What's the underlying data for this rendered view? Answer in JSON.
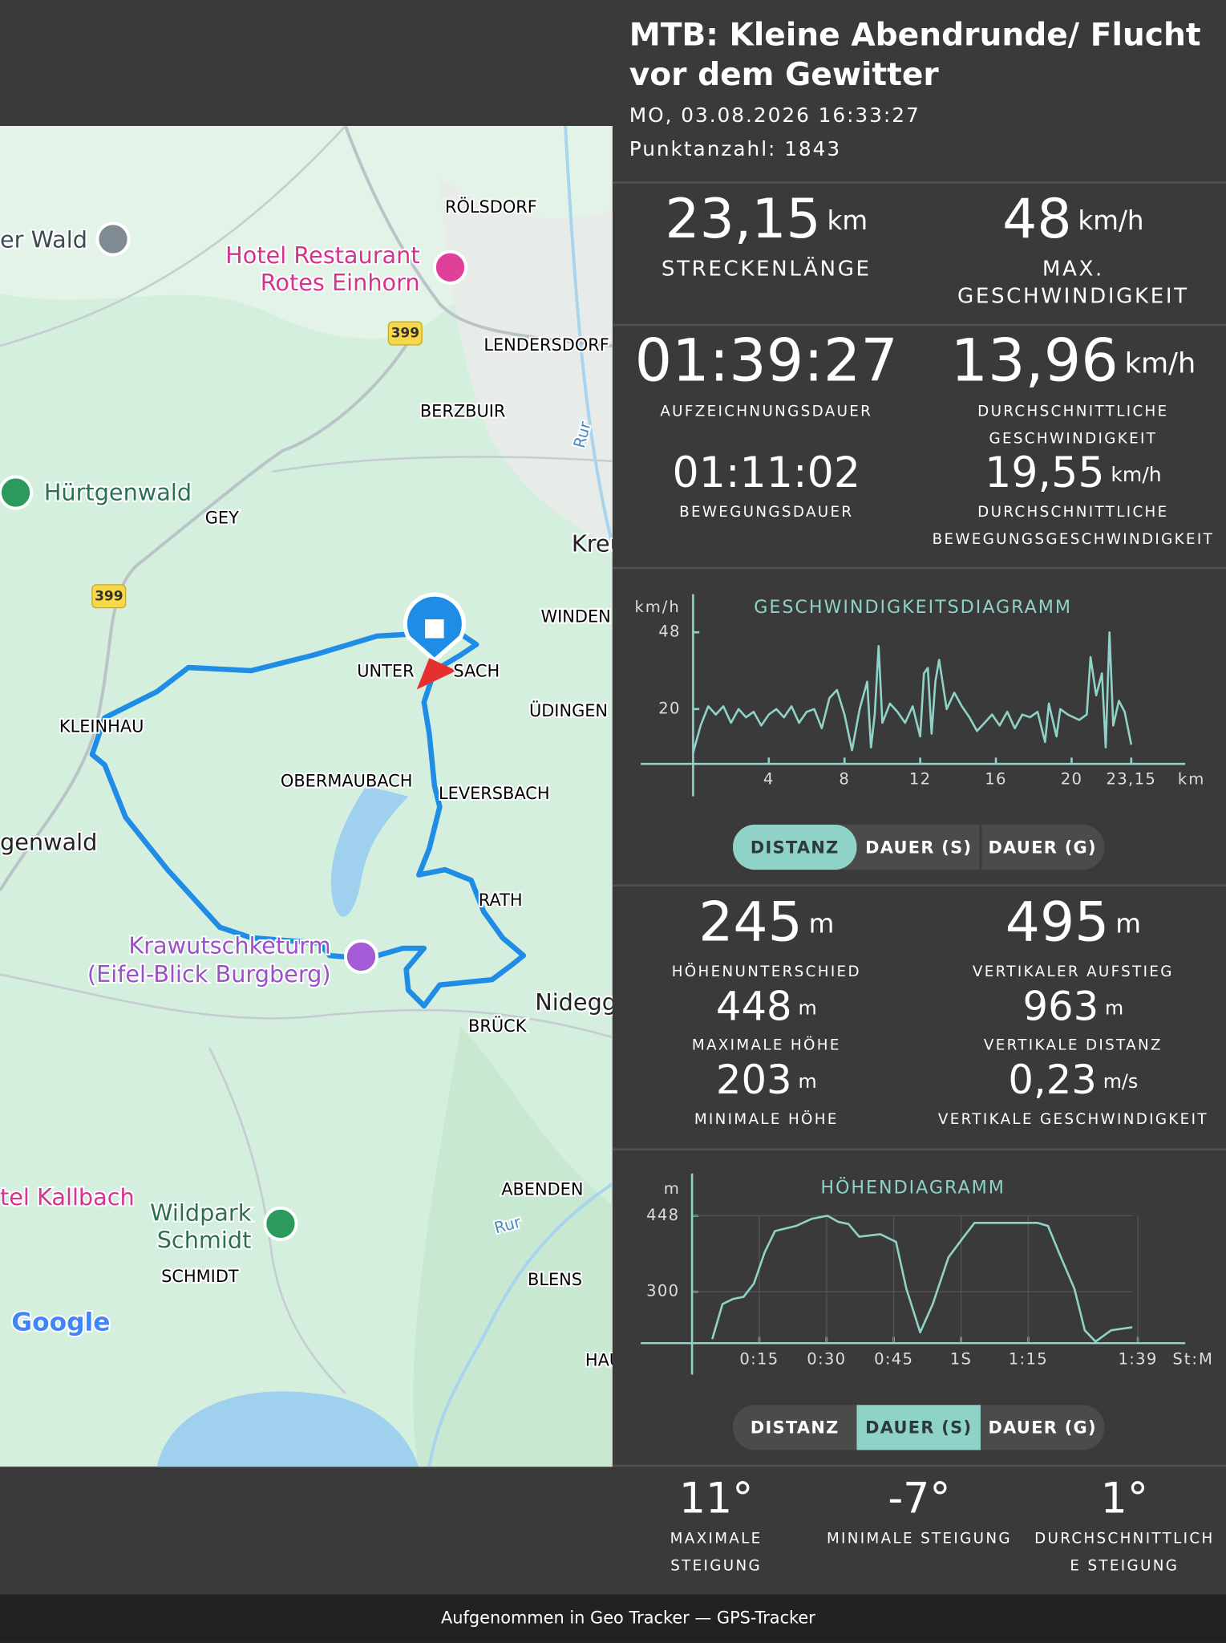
{
  "header": {
    "title_lines": [
      "MTB: Kleine Abendrunde/ Flucht",
      "vor dem Gewitter"
    ],
    "datetime": "MO, 03.08.2026 16:33:27",
    "points": "Punktanzahl: 1843"
  },
  "map": {
    "labels": [
      "er Wald",
      "Hotel Restaurant",
      "Rotes Einhorn",
      "RÖLSDORF",
      "399",
      "LENDERSDORF",
      "BERZBUIR",
      "Rur",
      "Hürtgenwald",
      "GEY",
      "Kreu",
      "399",
      "WINDEN",
      "UNTER",
      "SACH",
      "ÜDINGEN",
      "KLEINHAU",
      "OBERMAUBACH",
      "LEVERSBACH",
      "genwald",
      "RATH",
      "Krawutschketurm",
      "(Eifel-Blick Burgberg)",
      "Nidegg",
      "BRÜCK",
      "tel Kallbach",
      "ABENDEN",
      "Wildpark",
      "Schmidt",
      "Rur",
      "SCHMIDT",
      "BLENS",
      "HAU",
      "Google"
    ]
  },
  "stats": [
    {
      "value": "23,15",
      "unit": "km",
      "label": [
        "STRECKENLÄNGE"
      ]
    },
    {
      "value": "48",
      "unit": "km/h",
      "label": [
        "MAX.",
        "GESCHWINDIGKEIT"
      ]
    },
    {
      "value": "01:39:27",
      "label": [
        "AUFZEICHNUNGSDAUER"
      ]
    },
    {
      "value": "13,96",
      "unit": "km/h",
      "label": [
        "DURCHSCHNITTLICHE",
        "GESCHWINDIGKEIT"
      ]
    },
    {
      "value": "01:11:02",
      "label": [
        "BEWEGUNGSDAUER"
      ]
    },
    {
      "value": "19,55",
      "unit": "km/h",
      "label": [
        "DURCHSCHNITTLICHE",
        "BEWEGUNGSGESCHWINDIGKEIT"
      ]
    },
    {
      "value": "245",
      "unit": "m",
      "label": [
        "HÖHENUNTERSCHIED"
      ]
    },
    {
      "value": "495",
      "unit": "m",
      "label": [
        "VERTIKALER AUFSTIEG"
      ]
    },
    {
      "value": "448",
      "unit": "m",
      "label": [
        "MAXIMALE HÖHE"
      ]
    },
    {
      "value": "963",
      "unit": "m",
      "label": [
        "VERTIKALE DISTANZ"
      ]
    },
    {
      "value": "203",
      "unit": "m",
      "label": [
        "MINIMALE HÖHE"
      ]
    },
    {
      "value": "0,23",
      "unit": "m/s",
      "label": [
        "VERTIKALE GESCHWINDIGKEIT"
      ]
    },
    {
      "value": "11°",
      "label": [
        "MAXIMALE",
        "STEIGUNG"
      ]
    },
    {
      "value": "-7°",
      "label": [
        "MINIMALE STEIGUNG"
      ]
    },
    {
      "value": "1°",
      "label": [
        "DURCHSCHNITTLICH",
        "E STEIGUNG"
      ]
    }
  ],
  "speed_chart": {
    "type": "line",
    "title": "GESCHWINDIGKEITSDIAGRAMM",
    "y_unit": "km/h",
    "x_unit": "km",
    "color": "#8fd3c8",
    "x": [
      0,
      0.4,
      0.8,
      1.2,
      1.6,
      2.0,
      2.4,
      2.8,
      3.2,
      3.6,
      4.0,
      4.4,
      4.8,
      5.2,
      5.6,
      6.0,
      6.4,
      6.8,
      7.2,
      7.6,
      8.0,
      8.4,
      8.8,
      9.2,
      9.4,
      9.6,
      9.8,
      10.0,
      10.4,
      10.8,
      11.2,
      11.6,
      12.0,
      12.2,
      12.4,
      12.6,
      12.8,
      13.0,
      13.4,
      13.8,
      14.2,
      14.6,
      15.0,
      15.4,
      15.8,
      16.2,
      16.6,
      17.0,
      17.4,
      17.8,
      18.2,
      18.6,
      18.8,
      19.2,
      19.4,
      19.8,
      20.4,
      20.8,
      21.0,
      21.3,
      21.6,
      21.8,
      22.0,
      22.2,
      22.5,
      22.8,
      23.15
    ],
    "values": [
      4,
      14,
      21,
      18,
      21,
      15,
      20,
      17,
      19,
      14,
      18,
      20,
      17,
      21,
      15,
      19,
      20,
      13,
      24,
      27,
      18,
      5,
      20,
      30,
      6,
      18,
      43,
      15,
      22,
      19,
      15,
      21,
      10,
      33,
      35,
      11,
      30,
      38,
      20,
      26,
      21,
      17,
      12,
      15,
      18,
      14,
      19,
      13,
      18,
      17,
      19,
      8,
      22,
      10,
      20,
      18,
      16,
      18,
      39,
      25,
      33,
      6,
      48,
      14,
      23,
      19,
      7
    ],
    "xlim": [
      0,
      26
    ],
    "ylim": [
      0,
      60
    ],
    "xticks": [
      4,
      8,
      12,
      16,
      20,
      {
        "value": 23.15,
        "label": "23,15"
      }
    ],
    "yticks": [
      20,
      48
    ],
    "grid": false
  },
  "speed_tabs": {
    "labels": [
      "DISTANZ",
      "DAUER (S)",
      "DAUER (G)"
    ],
    "selected": 0
  },
  "elevation_chart": {
    "type": "line",
    "title": "HÖHENDIAGRAMM",
    "y_unit": "m",
    "x_unit": "St:M",
    "color": "#8fd3c8",
    "x": [
      4.5,
      6.8,
      9.1,
      11.5,
      13.8,
      16.2,
      18.5,
      23.2,
      26.7,
      30.2,
      32.6,
      34.9,
      37.3,
      42.0,
      45.5,
      47.8,
      50.9,
      53.7,
      57.2,
      60.7,
      63.0,
      70.1,
      77.1,
      79.4,
      81.8,
      85.3,
      87.6,
      90.0,
      93.5,
      98.2
    ],
    "values": [
      208,
      276,
      286,
      290,
      316,
      377,
      418,
      428,
      442,
      448,
      436,
      432,
      407,
      412,
      397,
      306,
      221,
      276,
      367,
      408,
      434,
      434,
      434,
      428,
      377,
      306,
      225,
      203,
      225,
      231
    ],
    "xlim": [
      0,
      110
    ],
    "ylim": [
      200,
      520
    ],
    "xticks": [
      {
        "value": 15,
        "label": "0:15"
      },
      {
        "value": 30,
        "label": "0:30"
      },
      {
        "value": 45,
        "label": "0:45"
      },
      {
        "value": 60,
        "label": "1S"
      },
      {
        "value": 75,
        "label": "1:15"
      },
      {
        "value": 99.45,
        "label": "1:39"
      }
    ],
    "yticks": [
      300,
      448
    ],
    "grid": true
  },
  "elevation_tabs": {
    "labels": [
      "DISTANZ",
      "DAUER (S)",
      "DAUER (G)"
    ],
    "selected": 1
  },
  "footer": "Aufgenommen in Geo Tracker — GPS-Tracker"
}
